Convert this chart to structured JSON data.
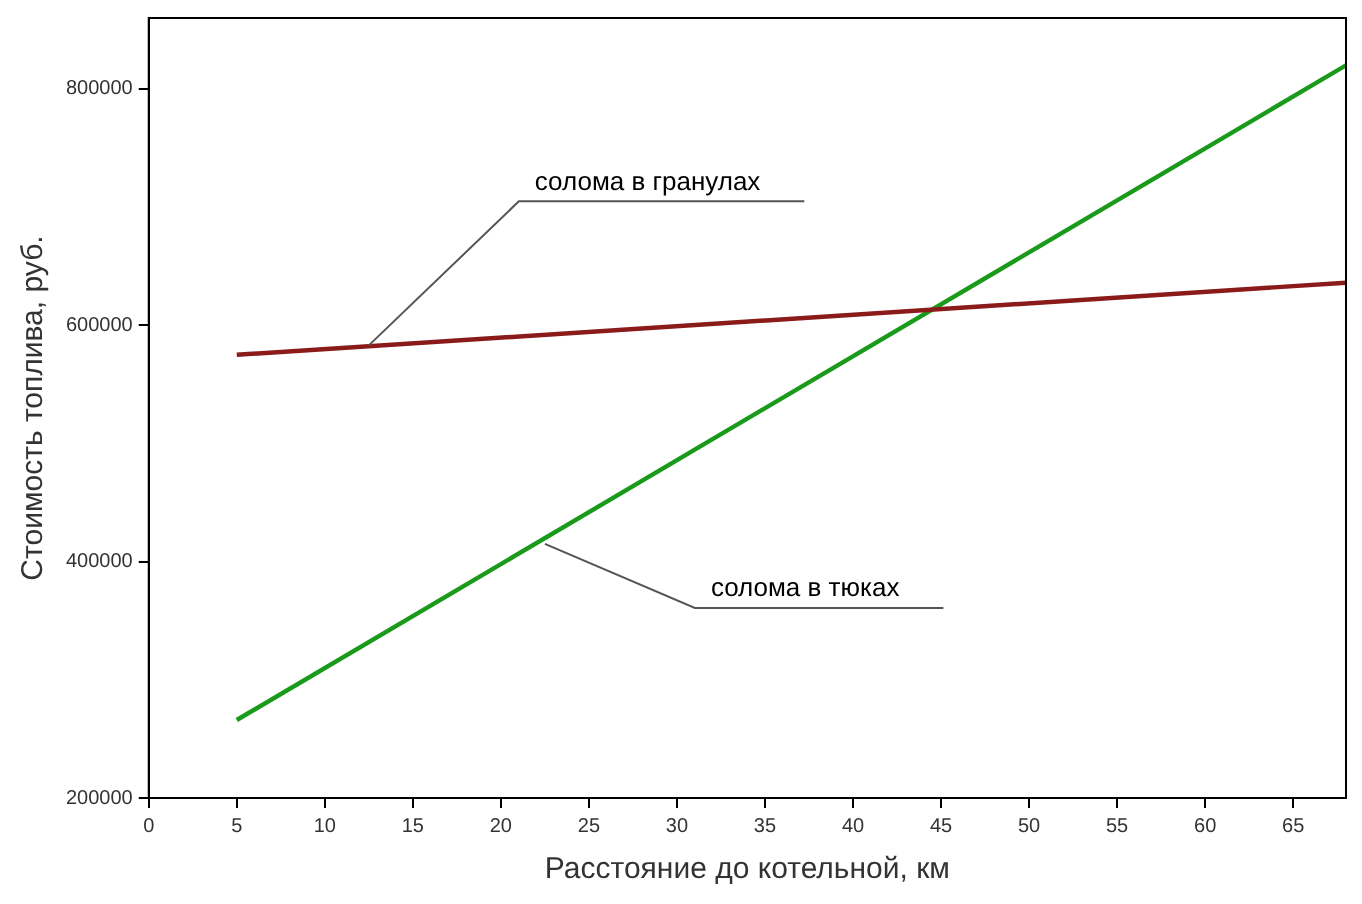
{
  "chart_data": {
    "type": "line",
    "xlabel": "Расстояние до котельной, км",
    "ylabel": "Стоимость топлива, руб.",
    "xlim": [
      0,
      68
    ],
    "xticks": [
      0,
      5,
      10,
      15,
      20,
      25,
      30,
      35,
      40,
      45,
      50,
      55,
      60,
      65
    ],
    "ylim": [
      200000,
      860000
    ],
    "yticks": [
      200000,
      400000,
      600000,
      800000
    ],
    "grid": false,
    "legend": false,
    "marker": "none",
    "line_style": "solid",
    "x": [
      5,
      68
    ],
    "series": [
      {
        "color": "#8b1a1a",
        "values": [
          575000,
          636000
        ]
      },
      {
        "color": "#1a9a1a",
        "values": [
          266000,
          820000
        ]
      }
    ],
    "annotations": [
      {
        "text": "солома в гранулах",
        "x": 12.5,
        "y": 583000
      },
      {
        "text": "солома в тюках",
        "x": 22.5,
        "y": 415000
      }
    ]
  }
}
